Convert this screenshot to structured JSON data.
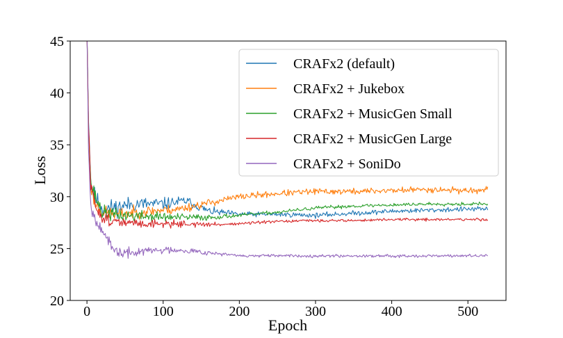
{
  "chart_data": {
    "type": "line",
    "title": "",
    "xlabel": "Epoch",
    "ylabel": "Loss",
    "xlim": [
      -22,
      550
    ],
    "ylim": [
      20,
      45
    ],
    "xticks": [
      0,
      100,
      200,
      300,
      400,
      500
    ],
    "yticks": [
      20,
      25,
      30,
      35,
      40,
      45
    ],
    "grid": false,
    "legend_position": "top-right",
    "n_epochs": 527,
    "series": [
      {
        "name": "CRAFx2 (default)",
        "color": "#1f77b4",
        "keypoints": {
          "x": [
            0,
            2,
            5,
            10,
            20,
            40,
            60,
            100,
            130,
            160,
            200,
            250,
            300,
            350,
            400,
            450,
            500,
            525
          ],
          "y": [
            46,
            38,
            31.5,
            30,
            28.8,
            29,
            29.3,
            29.3,
            29.6,
            28.6,
            28.3,
            28.3,
            28.2,
            28.4,
            28.6,
            28.7,
            28.8,
            28.8
          ]
        },
        "noise": [
          1.4,
          0.35
        ],
        "seed": 11
      },
      {
        "name": "CRAFx2 + Jukebox",
        "color": "#ff7f0e",
        "keypoints": {
          "x": [
            0,
            2,
            5,
            10,
            20,
            40,
            80,
            120,
            160,
            200,
            250,
            300,
            350,
            400,
            450,
            500,
            525
          ],
          "y": [
            46,
            37,
            31,
            29.5,
            28.5,
            28.3,
            28.6,
            28.8,
            29.4,
            30,
            30.3,
            30.5,
            30.5,
            30.6,
            30.7,
            30.6,
            30.6
          ]
        },
        "noise": [
          1.0,
          0.45
        ],
        "seed": 23
      },
      {
        "name": "CRAFx2 + MusicGen Small",
        "color": "#2ca02c",
        "keypoints": {
          "x": [
            0,
            2,
            5,
            10,
            20,
            40,
            80,
            120,
            160,
            200,
            250,
            300,
            350,
            400,
            450,
            500,
            525
          ],
          "y": [
            46,
            37,
            31.3,
            30.2,
            28.5,
            28.2,
            28.1,
            28.0,
            28.0,
            28.2,
            28.5,
            28.9,
            29.1,
            29.2,
            29.3,
            29.3,
            29.3
          ]
        },
        "noise": [
          1.1,
          0.25
        ],
        "seed": 37
      },
      {
        "name": "CRAFx2 + MusicGen Large",
        "color": "#d62728",
        "keypoints": {
          "x": [
            0,
            2,
            5,
            10,
            20,
            40,
            80,
            120,
            160,
            200,
            250,
            300,
            350,
            400,
            450,
            500,
            525
          ],
          "y": [
            46,
            37,
            31,
            29.3,
            28,
            27.5,
            27.4,
            27.4,
            27.3,
            27.4,
            27.6,
            27.7,
            27.7,
            27.8,
            27.8,
            27.8,
            27.8
          ]
        },
        "noise": [
          0.9,
          0.2
        ],
        "seed": 51
      },
      {
        "name": "CRAFx2 + SoniDo",
        "color": "#9467bd",
        "keypoints": {
          "x": [
            0,
            2,
            5,
            10,
            18,
            25,
            35,
            50,
            80,
            120,
            160,
            200,
            250,
            300,
            350,
            400,
            450,
            500,
            525
          ],
          "y": [
            46,
            35,
            29,
            28,
            27.2,
            26,
            24.8,
            24.5,
            24.8,
            24.9,
            24.6,
            24.3,
            24.3,
            24.3,
            24.3,
            24.3,
            24.3,
            24.3,
            24.3
          ]
        },
        "noise": [
          0.9,
          0.2
        ],
        "seed": 67
      }
    ]
  }
}
